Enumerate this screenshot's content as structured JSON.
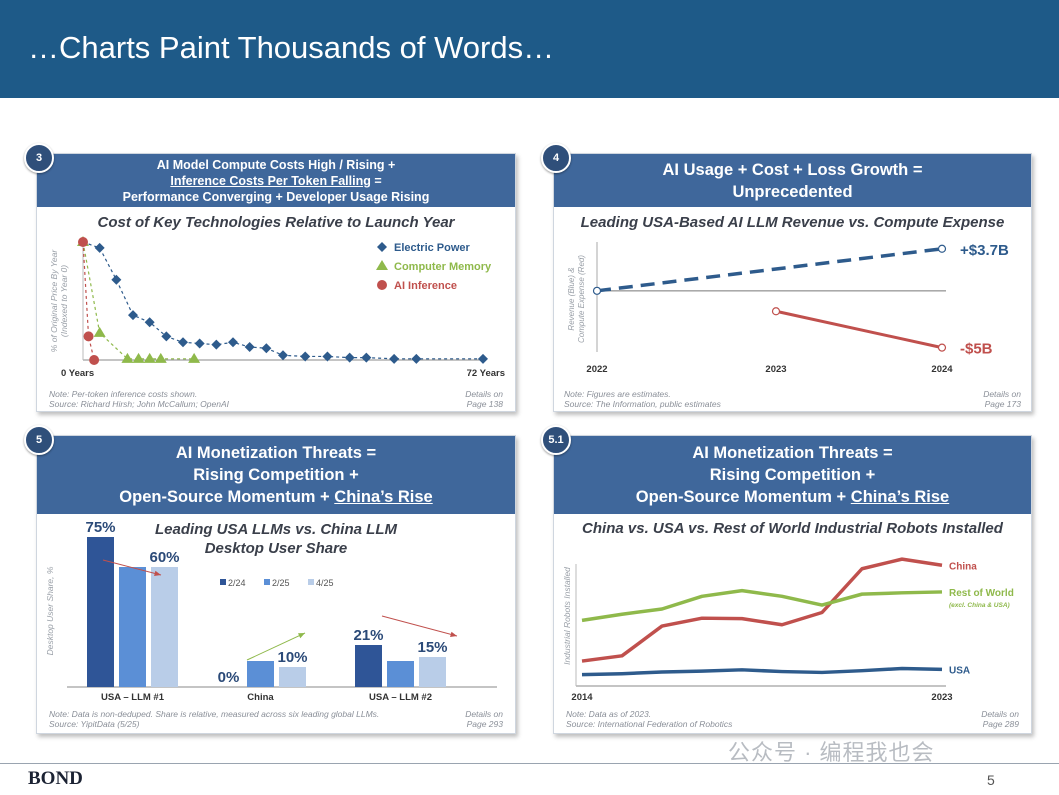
{
  "title": "…Charts Paint Thousands of Words…",
  "footer": {
    "brand": "BOND",
    "page": "5"
  },
  "watermark": "公众号 · 编程我也会",
  "panels": {
    "p3": {
      "badge": "3",
      "header_line1": "AI Model Compute Costs High / Rising +",
      "header_line2": "Inference Costs Per Token Falling",
      "header_line2b": " =",
      "header_line3": "Performance Converging + Developer Usage Rising",
      "subtitle": "Cost of Key Technologies Relative to Launch Year",
      "ylabel_1": "% of Original Price By Year",
      "ylabel_2": "(Indexed to Year 0)",
      "x_start": "0 Years",
      "x_end": "72 Years",
      "note_1": "Note: Per-token inference costs shown.",
      "note_2": "Source: Richard Hirsh; John McCallum; OpenAI",
      "details_1": "Details on",
      "details_2": "Page 138"
    },
    "p4": {
      "badge": "4",
      "header_line1": "AI Usage + Cost + Loss Growth =",
      "header_line2": "Unprecedented",
      "subtitle": "Leading USA-Based AI LLM Revenue vs. Compute Expense",
      "ylabel_1": "Revenue (Blue) &",
      "ylabel_2": "Compute Expense (Red)",
      "note_1": "Note: Figures are estimates.",
      "note_2": "Source: The Information, public estimates",
      "details_1": "Details on",
      "details_2": "Page 173"
    },
    "p5": {
      "badge": "5",
      "header_line1": "AI Monetization Threats =",
      "header_line2": "Rising Competition +",
      "header_line3a": "Open-Source Momentum + ",
      "header_line3b": "China’s Rise",
      "subtitle_1": "Leading USA LLMs vs. China LLM",
      "subtitle_2": "Desktop User Share",
      "ylabel": "Desktop User Share, %",
      "note_1": "Note: Data is non-deduped. Share is relative, measured across six leading global LLMs.",
      "note_2": "Source: YipitData (5/25)",
      "details_1": "Details on",
      "details_2": "Page 293"
    },
    "p51": {
      "badge": "5.1",
      "header_line1": "AI Monetization Threats =",
      "header_line2": "Rising Competition +",
      "header_line3a": "Open-Source Momentum + ",
      "header_line3b": "China’s Rise",
      "subtitle": "China vs. USA vs. Rest of World Industrial Robots Installed",
      "ylabel": "Industrial Robots Installed",
      "note_1": "Note: Data as of 2023.",
      "note_2": "Source: International Federation of Robotics",
      "details_1": "Details on",
      "details_2": "Page 289"
    }
  },
  "colors": {
    "header_bg": "#3f679b",
    "title_bg": "#1e5a88",
    "blue": "#2e5b8c",
    "green": "#8fb94b",
    "red": "#c0504d",
    "bar_dark": "#2f5597",
    "bar_mid": "#5b8fd6",
    "bar_light": "#b9cde8"
  },
  "chart_data": [
    {
      "type": "line",
      "id": "tech-costs",
      "title": "Cost of Key Technologies Relative to Launch Year",
      "xlabel": "",
      "ylabel": "% of Original Price By Year (Indexed to Year 0)",
      "x_ticks": [
        "0 Years",
        "72 Years"
      ],
      "xlim": [
        0,
        72
      ],
      "ylim": [
        0,
        100
      ],
      "legend": "top-right",
      "series": [
        {
          "name": "Electric Power",
          "color": "#2e5b8c",
          "marker": "diamond",
          "x": [
            0,
            3,
            6,
            9,
            12,
            15,
            18,
            21,
            24,
            27,
            30,
            33,
            36,
            40,
            44,
            48,
            51,
            56,
            60,
            72
          ],
          "y": [
            100,
            95,
            68,
            38,
            32,
            20,
            15,
            14,
            13,
            15,
            11,
            10,
            4,
            3,
            3,
            2,
            2,
            1,
            1,
            1
          ]
        },
        {
          "name": "Computer Memory",
          "color": "#8fb94b",
          "marker": "triangle",
          "x": [
            0,
            3,
            8,
            10,
            12,
            14,
            20
          ],
          "y": [
            100,
            23,
            1,
            1,
            1,
            1,
            1
          ]
        },
        {
          "name": "AI Inference",
          "color": "#c0504d",
          "marker": "circle",
          "x": [
            0,
            1,
            2
          ],
          "y": [
            100,
            20,
            0
          ]
        }
      ]
    },
    {
      "type": "line",
      "id": "revenue-expense",
      "title": "Leading USA-Based AI LLM Revenue vs. Compute Expense",
      "ylabel": "Revenue (Blue) & Compute Expense (Red)",
      "x": [
        "2022",
        "2023",
        "2024"
      ],
      "ylim": [
        -6,
        5
      ],
      "series": [
        {
          "name": "Revenue",
          "color": "#2e5b8c",
          "style": "dashed",
          "x": [
            "2022",
            "2024"
          ],
          "values": [
            0,
            3.7
          ],
          "end_label": "+$3.7B"
        },
        {
          "name": "Compute Expense",
          "color": "#c0504d",
          "style": "solid",
          "x": [
            "2023",
            "2024"
          ],
          "values": [
            -1.8,
            -5
          ],
          "end_label": "-$5B"
        }
      ]
    },
    {
      "type": "bar",
      "id": "user-share",
      "title": "Leading USA LLMs vs. China LLM Desktop User Share",
      "ylabel": "Desktop User Share, %",
      "categories": [
        "USA – LLM #1",
        "China",
        "USA – LLM #2"
      ],
      "ylim": [
        0,
        80
      ],
      "legend": "top",
      "series": [
        {
          "name": "2/24",
          "color": "#2f5597",
          "values": [
            75,
            0,
            21
          ],
          "labels": [
            "75%",
            "0%",
            "21%"
          ]
        },
        {
          "name": "2/25",
          "color": "#5b8fd6",
          "values": [
            60,
            13,
            13
          ],
          "labels": [
            "",
            "",
            ""
          ]
        },
        {
          "name": "4/25",
          "color": "#b9cde8",
          "values": [
            60,
            10,
            15
          ],
          "labels": [
            "60%",
            "10%",
            "15%"
          ]
        }
      ]
    },
    {
      "type": "line",
      "id": "robots",
      "title": "China vs. USA vs. Rest of World Industrial Robots Installed",
      "ylabel": "Industrial Robots Installed",
      "x": [
        "2014",
        "2015",
        "2016",
        "2017",
        "2018",
        "2019",
        "2020",
        "2021",
        "2022",
        "2023"
      ],
      "x_ticks": [
        "2014",
        "2023"
      ],
      "ylim": [
        0,
        320
      ],
      "series": [
        {
          "name": "China",
          "color": "#c0504d",
          "values": [
            57,
            69,
            137,
            155,
            154,
            140,
            168,
            268,
            290,
            276
          ]
        },
        {
          "name": "Rest of World",
          "sublabel": "(excl. China & USA)",
          "color": "#8fb94b",
          "values": [
            150,
            164,
            176,
            205,
            218,
            205,
            185,
            210,
            213,
            215
          ]
        },
        {
          "name": "USA",
          "color": "#2e5b8c",
          "values": [
            26,
            28,
            32,
            34,
            37,
            33,
            31,
            35,
            40,
            38
          ]
        }
      ]
    }
  ]
}
